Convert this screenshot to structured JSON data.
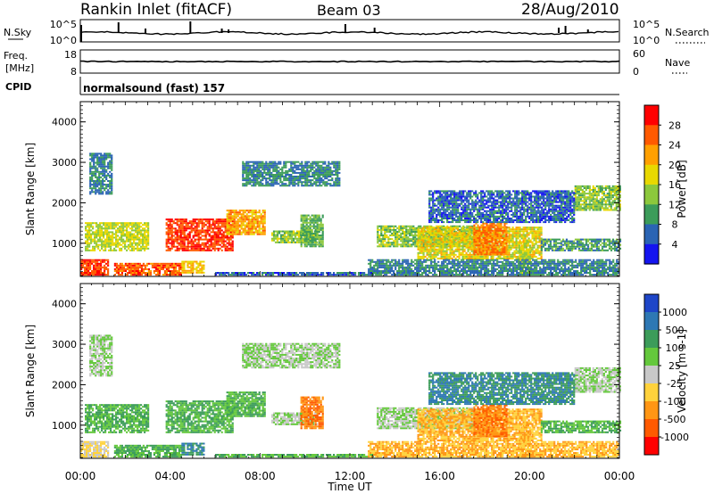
{
  "header": {
    "station": "Rankin Inlet (fitACF)",
    "beam": "Beam 03",
    "date": "28/Aug/2010"
  },
  "nsky_panel": {
    "left_label": "N.Sky",
    "left_ticks": [
      "10^5",
      "10^0"
    ],
    "right_ticks": [
      "10^5",
      "10^0"
    ],
    "right_label": "N.Search",
    "right_legend_style": "dotted"
  },
  "freq_panel": {
    "left_label_line1": "Freq.",
    "left_label_line2": "[MHz]",
    "left_ticks": [
      "18",
      "8"
    ],
    "right_ticks": [
      "60",
      "0"
    ],
    "right_label": "Nave",
    "right_legend_style": "dotted"
  },
  "cpid_panel": {
    "label": "CPID",
    "program": "normalsound (fast) 157"
  },
  "axes": {
    "ylabel": "Slant Range [km]",
    "xlabel": "Time UT",
    "x_ticks": [
      "00:00",
      "04:00",
      "08:00",
      "12:00",
      "16:00",
      "20:00",
      "00:00"
    ],
    "y_ticks": [
      "1000",
      "2000",
      "3000",
      "4000"
    ]
  },
  "power_colorbar": {
    "label": "Power [dB]",
    "ticks": [
      "28",
      "24",
      "20",
      "16",
      "12",
      "8",
      "4"
    ],
    "colors": [
      "#ff0000",
      "#ff5a00",
      "#ffa000",
      "#e8d800",
      "#8cc83c",
      "#3c9c5a",
      "#2a64b4",
      "#1414f0"
    ]
  },
  "velocity_colorbar": {
    "label": "Velocity [m s-1]",
    "ticks": [
      "1000",
      "500",
      "100",
      "25",
      "-25",
      "-100",
      "-500",
      "-1000"
    ],
    "colors": [
      "#1e46c8",
      "#2e78b4",
      "#3c9c5a",
      "#64c83c",
      "#c8c8c8",
      "#ffd23c",
      "#ff9614",
      "#ff5a00",
      "#ff0000"
    ]
  },
  "chart_data": {
    "type": "heatmap",
    "panels": [
      "power",
      "velocity"
    ],
    "x_range_hours": [
      0,
      24
    ],
    "y_range_km": [
      180,
      4500
    ],
    "grid": false,
    "echo_regions": [
      {
        "t0": 0.0,
        "t1": 1.2,
        "r0": 200,
        "r1": 600,
        "p": 28,
        "v": -25
      },
      {
        "t0": 1.5,
        "t1": 4.5,
        "r0": 200,
        "r1": 500,
        "p": 26,
        "v": 100
      },
      {
        "t0": 4.5,
        "t1": 5.5,
        "r0": 250,
        "r1": 550,
        "p": 20,
        "v": 500
      },
      {
        "t0": 0.2,
        "t1": 3.0,
        "r0": 800,
        "r1": 1500,
        "p": 16,
        "v": 100
      },
      {
        "t0": 3.8,
        "t1": 6.8,
        "r0": 800,
        "r1": 1600,
        "p": 28,
        "v": 100
      },
      {
        "t0": 6.5,
        "t1": 8.2,
        "r0": 1200,
        "r1": 1800,
        "p": 22,
        "v": 100
      },
      {
        "t0": 8.5,
        "t1": 10.5,
        "r0": 1000,
        "r1": 1300,
        "p": 14,
        "v": 25
      },
      {
        "t0": 9.8,
        "t1": 10.8,
        "r0": 900,
        "r1": 1700,
        "p": 12,
        "v": -500
      },
      {
        "t0": 0.4,
        "t1": 1.4,
        "r0": 2200,
        "r1": 3200,
        "p": 8,
        "v": 25
      },
      {
        "t0": 7.2,
        "t1": 11.5,
        "r0": 2400,
        "r1": 3000,
        "p": 8,
        "v": 25
      },
      {
        "t0": 13.2,
        "t1": 17.5,
        "r0": 900,
        "r1": 1400,
        "p": 14,
        "v": 25
      },
      {
        "t0": 15.0,
        "t1": 20.5,
        "r0": 600,
        "r1": 1400,
        "p": 18,
        "v": -100
      },
      {
        "t0": 17.5,
        "t1": 19.0,
        "r0": 700,
        "r1": 1500,
        "p": 24,
        "v": -500
      },
      {
        "t0": 19.5,
        "t1": 20.0,
        "r0": 200,
        "r1": 1000,
        "p": 16,
        "v": -100
      },
      {
        "t0": 20.5,
        "t1": 24.0,
        "r0": 800,
        "r1": 1100,
        "p": 10,
        "v": 100
      },
      {
        "t0": 22.0,
        "t1": 24.0,
        "r0": 1800,
        "r1": 2400,
        "p": 14,
        "v": 25
      },
      {
        "t0": 15.5,
        "t1": 22.0,
        "r0": 1500,
        "r1": 2300,
        "p": 6,
        "v": 500
      },
      {
        "t0": 6.0,
        "t1": 13.0,
        "r0": 200,
        "r1": 260,
        "p": 6,
        "v": 100
      },
      {
        "t0": 12.8,
        "t1": 24.0,
        "r0": 200,
        "r1": 600,
        "p": 8,
        "v": -100
      }
    ]
  }
}
